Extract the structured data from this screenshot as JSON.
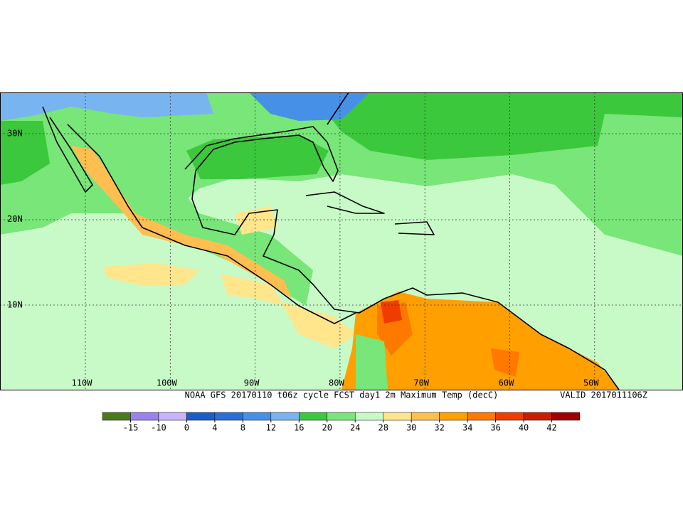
{
  "map": {
    "lat_labels": [
      "30N",
      "20N",
      "10N"
    ],
    "lon_labels": [
      "110W",
      "100W",
      "90W",
      "80W",
      "70W",
      "60W",
      "50W"
    ],
    "title": "NOAA GFS 20170110 t06z cycle FCST day1 2m Maximum Temp (decC)",
    "valid": "VALID 2017011106Z"
  },
  "colorbar": {
    "colors": [
      "#4b7a1e",
      "#9a82ee",
      "#c8b4fa",
      "#1a5fc8",
      "#2a6fd8",
      "#4690e8",
      "#78b4f0",
      "#3cc83c",
      "#78e678",
      "#c8fac8",
      "#ffe68c",
      "#ffbe50",
      "#ffa000",
      "#ff7800",
      "#f03c00",
      "#c81e00",
      "#a00000"
    ],
    "ticks": [
      -15,
      -10,
      0,
      4,
      8,
      12,
      16,
      20,
      24,
      28,
      30,
      32,
      34,
      36,
      40,
      42
    ]
  }
}
